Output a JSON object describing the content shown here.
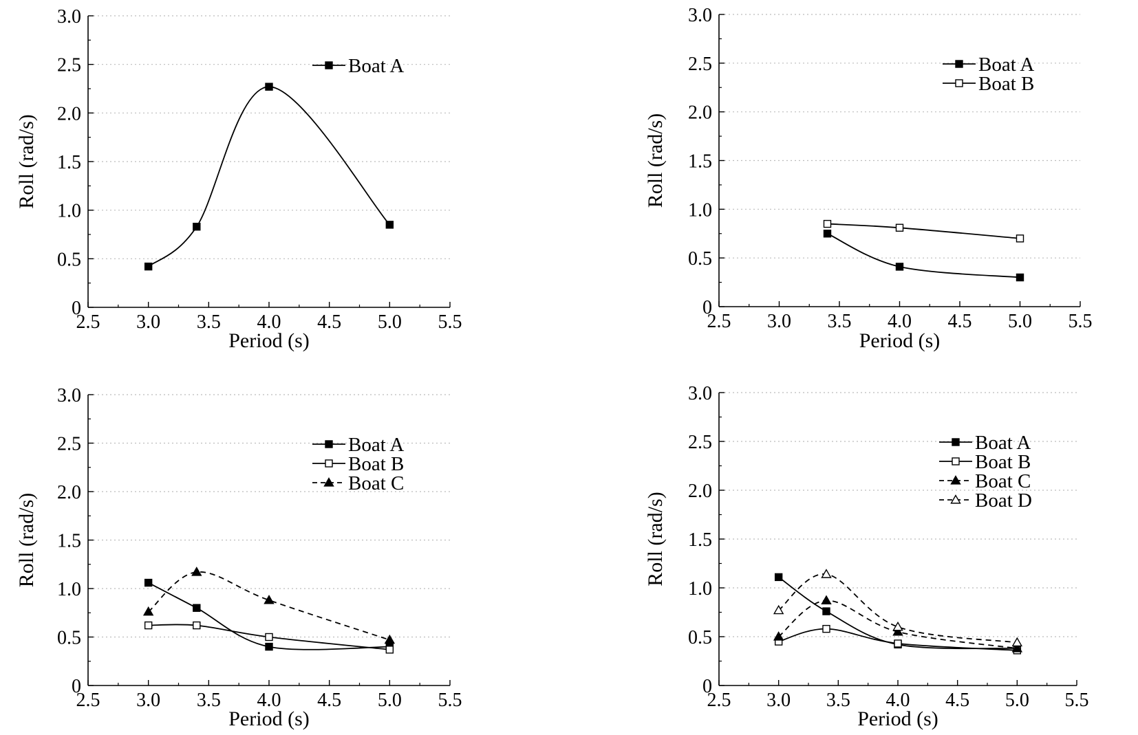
{
  "figure": {
    "background": "#ffffff",
    "line_color": "#000000",
    "grid_color": "#bbbbbb"
  },
  "chart_data": [
    {
      "type": "line",
      "xlabel": "Period (s)",
      "ylabel": "Roll (rad/s)",
      "xlim": [
        2.5,
        5.5
      ],
      "ylim": [
        0,
        3.0
      ],
      "xticks": [
        "2.5",
        "3.0",
        "3.5",
        "4.0",
        "4.5",
        "5.0",
        "5.5"
      ],
      "yticks": [
        "0",
        "0.5",
        "1.0",
        "1.5",
        "2.0",
        "2.5",
        "3.0"
      ],
      "grid": "horizontal dotted",
      "legend_position": "top-right",
      "series": [
        {
          "name": "Boat A",
          "marker": "filled-square",
          "line": "solid",
          "x": [
            3.0,
            3.4,
            4.0,
            5.0
          ],
          "values": [
            0.42,
            0.83,
            2.27,
            0.85
          ]
        }
      ]
    },
    {
      "type": "line",
      "xlabel": "Period (s)",
      "ylabel": "Roll (rad/s)",
      "xlim": [
        2.5,
        5.5
      ],
      "ylim": [
        0,
        3.0
      ],
      "xticks": [
        "2.5",
        "3.0",
        "3.5",
        "4.0",
        "4.5",
        "5.0",
        "5.5"
      ],
      "yticks": [
        "0",
        "0.5",
        "1.0",
        "1.5",
        "2.0",
        "2.5",
        "3.0"
      ],
      "grid": "horizontal dotted",
      "legend_position": "top-right",
      "series": [
        {
          "name": "Boat A",
          "marker": "filled-square",
          "line": "solid",
          "x": [
            3.4,
            4.0,
            5.0
          ],
          "values": [
            0.75,
            0.41,
            0.3
          ]
        },
        {
          "name": "Boat B",
          "marker": "open-square",
          "line": "solid",
          "x": [
            3.4,
            4.0,
            5.0
          ],
          "values": [
            0.85,
            0.81,
            0.7
          ]
        }
      ]
    },
    {
      "type": "line",
      "xlabel": "Period (s)",
      "ylabel": "Roll (rad/s)",
      "xlim": [
        2.5,
        5.5
      ],
      "ylim": [
        0,
        3.0
      ],
      "xticks": [
        "2.5",
        "3.0",
        "3.5",
        "4.0",
        "4.5",
        "5.0",
        "5.5"
      ],
      "yticks": [
        "0",
        "0.5",
        "1.0",
        "1.5",
        "2.0",
        "2.5",
        "3.0"
      ],
      "grid": "horizontal dotted",
      "legend_position": "top-right",
      "series": [
        {
          "name": "Boat A",
          "marker": "filled-square",
          "line": "solid",
          "x": [
            3.0,
            3.4,
            4.0,
            5.0
          ],
          "values": [
            1.06,
            0.8,
            0.4,
            0.4
          ]
        },
        {
          "name": "Boat B",
          "marker": "open-square",
          "line": "solid",
          "x": [
            3.0,
            3.4,
            4.0,
            5.0
          ],
          "values": [
            0.62,
            0.62,
            0.5,
            0.37
          ]
        },
        {
          "name": "Boat C",
          "marker": "filled-triangle",
          "line": "dashed",
          "x": [
            3.0,
            3.4,
            4.0,
            5.0
          ],
          "values": [
            0.76,
            1.17,
            0.88,
            0.47
          ]
        }
      ]
    },
    {
      "type": "line",
      "xlabel": "Period (s)",
      "ylabel": "Roll (rad/s)",
      "xlim": [
        2.5,
        5.5
      ],
      "ylim": [
        0,
        3.0
      ],
      "xticks": [
        "2.5",
        "3.0",
        "3.5",
        "4.0",
        "4.5",
        "5.0",
        "5.5"
      ],
      "yticks": [
        "0",
        "0.5",
        "1.0",
        "1.5",
        "2.0",
        "2.5",
        "3.0"
      ],
      "grid": "horizontal dotted",
      "legend_position": "top-right",
      "series": [
        {
          "name": "Boat A",
          "marker": "filled-square",
          "line": "solid",
          "x": [
            3.0,
            3.4,
            4.0,
            5.0
          ],
          "values": [
            1.11,
            0.76,
            0.42,
            0.38
          ]
        },
        {
          "name": "Boat B",
          "marker": "open-square",
          "line": "solid",
          "x": [
            3.0,
            3.4,
            4.0,
            5.0
          ],
          "values": [
            0.45,
            0.58,
            0.43,
            0.36
          ]
        },
        {
          "name": "Boat C",
          "marker": "filled-triangle",
          "line": "dashed",
          "x": [
            3.0,
            3.4,
            4.0,
            5.0
          ],
          "values": [
            0.5,
            0.87,
            0.55,
            0.38
          ]
        },
        {
          "name": "Boat D",
          "marker": "open-triangle",
          "line": "dashed",
          "x": [
            3.0,
            3.4,
            4.0,
            5.0
          ],
          "values": [
            0.77,
            1.14,
            0.6,
            0.44
          ]
        }
      ]
    }
  ]
}
